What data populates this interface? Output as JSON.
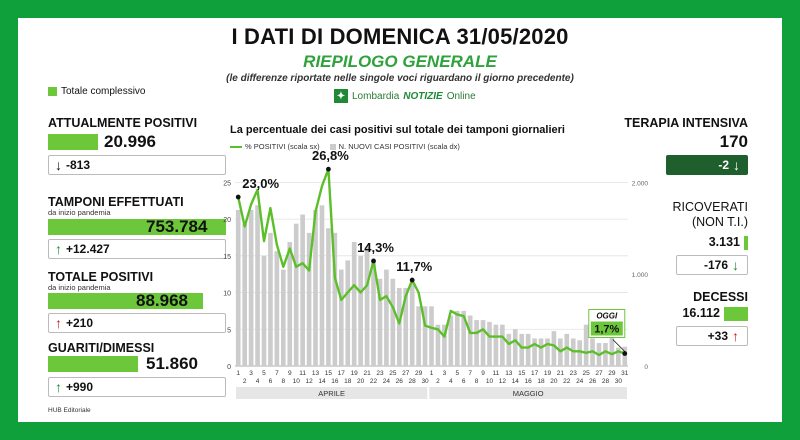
{
  "header": {
    "title": "I DATI DI DOMENICA 31/05/2020",
    "subtitle": "RIEPILOGO GENERALE",
    "note": "(le differenze riportate nelle singole voci riguardano il giorno precedente)",
    "brand_prefix": "Lombardia",
    "brand_name": "NOTIZIE",
    "brand_suffix": "Online"
  },
  "legend_total": "Totale complessivo",
  "left": {
    "attualmente_positivi": {
      "label": "ATTUALMENTE POSITIVI",
      "value": "20.996",
      "delta": "-813",
      "direction": "down"
    },
    "tamponi": {
      "label": "TAMPONI EFFETTUATI",
      "sublabel": "da inizio pandemia",
      "value": "753.784",
      "delta": "+12.427",
      "direction": "up"
    },
    "totale_positivi": {
      "label": "TOTALE POSITIVI",
      "sublabel": "da inizio pandemia",
      "value": "88.968",
      "delta": "+210",
      "direction": "up"
    },
    "guariti": {
      "label": "GUARITI/DIMESSI",
      "value": "51.860",
      "delta": "+990",
      "direction": "up"
    }
  },
  "right": {
    "terapia": {
      "label": "TERAPIA INTENSIVA",
      "value": "170",
      "delta": "-2",
      "direction": "down"
    },
    "ricoverati": {
      "label": "RICOVERATI",
      "label2": "(NON T.I.)",
      "value": "3.131",
      "delta": "-176",
      "direction": "down"
    },
    "decessi": {
      "label": "DECESSI",
      "value": "16.112",
      "delta": "+33",
      "direction": "up"
    }
  },
  "footer": "HUB Editoriale",
  "colors": {
    "frame": "#0fa03c",
    "accent": "#6dc73a",
    "line": "#5cbf2a",
    "bar": "#cccccc",
    "dark": "#1f5f2e",
    "red": "#c0211f"
  },
  "chart_data": {
    "type": "bar+line",
    "title": "La percentuale dei casi positivi sul totale dei tamponi giornalieri",
    "legend": [
      "% POSITIVI (scala sx)",
      "N. NUOVI CASI POSITIVI (scala dx)"
    ],
    "x_tick_labels": [
      "1",
      "2",
      "3",
      "4",
      "5",
      "6",
      "7",
      "8",
      "9",
      "10",
      "11",
      "12",
      "13",
      "14",
      "15",
      "16",
      "17",
      "18",
      "19",
      "20",
      "21",
      "22",
      "23",
      "24",
      "25",
      "26",
      "27",
      "28",
      "29",
      "30",
      "1",
      "2",
      "3",
      "4",
      "5",
      "6",
      "7",
      "8",
      "9",
      "10",
      "11",
      "12",
      "13",
      "14",
      "15",
      "16",
      "17",
      "18",
      "19",
      "20",
      "21",
      "22",
      "23",
      "24",
      "25",
      "26",
      "27",
      "28",
      "29",
      "30",
      "31"
    ],
    "months": [
      {
        "label": "APRILE",
        "days": 30
      },
      {
        "label": "MAGGIO",
        "days": 31
      }
    ],
    "y_left": {
      "ticks": [
        0,
        5,
        10,
        15,
        20,
        25
      ],
      "range": [
        0,
        27.5
      ]
    },
    "y_right": {
      "ticks": [
        0,
        1000,
        2000
      ],
      "tick_labels": [
        "0",
        "1.000",
        "2.000"
      ],
      "range": [
        0,
        2200
      ]
    },
    "pct_positivi": [
      23.0,
      19.0,
      22.0,
      24.0,
      17.0,
      21.5,
      16.5,
      13.5,
      16.0,
      13.5,
      14.0,
      13.0,
      21.0,
      24.5,
      26.8,
      12.0,
      9.0,
      10.0,
      11.0,
      10.0,
      11.0,
      14.3,
      9.0,
      9.5,
      8.0,
      5.8,
      9.5,
      11.7,
      10.0,
      5.5,
      5.2,
      5.0,
      4.0,
      7.5,
      7.0,
      6.8,
      4.5,
      4.5,
      5.0,
      4.0,
      4.0,
      4.0,
      3.0,
      3.5,
      2.5,
      2.5,
      3.0,
      2.5,
      3.0,
      2.8,
      2.0,
      2.5,
      2.0,
      2.0,
      1.8,
      2.0,
      1.5,
      2.0,
      1.6,
      2.0,
      1.7
    ],
    "nuovi_casi": [
      1700,
      1550,
      1700,
      1750,
      1200,
      1450,
      1250,
      1050,
      1350,
      1550,
      1650,
      1450,
      1700,
      1750,
      1500,
      1450,
      1050,
      1150,
      1350,
      1200,
      1300,
      1150,
      950,
      1050,
      950,
      850,
      850,
      900,
      650,
      650,
      650,
      450,
      450,
      550,
      600,
      600,
      550,
      500,
      500,
      480,
      450,
      450,
      350,
      400,
      350,
      350,
      300,
      300,
      300,
      380,
      300,
      350,
      300,
      280,
      450,
      300,
      250,
      250,
      400,
      200,
      210
    ],
    "annotations": [
      {
        "index": 0,
        "label": "23,0%"
      },
      {
        "index": 14,
        "label": "26,8%"
      },
      {
        "index": 21,
        "label": "14,3%"
      },
      {
        "index": 27,
        "label": "11,7%"
      }
    ],
    "today": {
      "label": "OGGI",
      "value": "1,7%"
    }
  }
}
